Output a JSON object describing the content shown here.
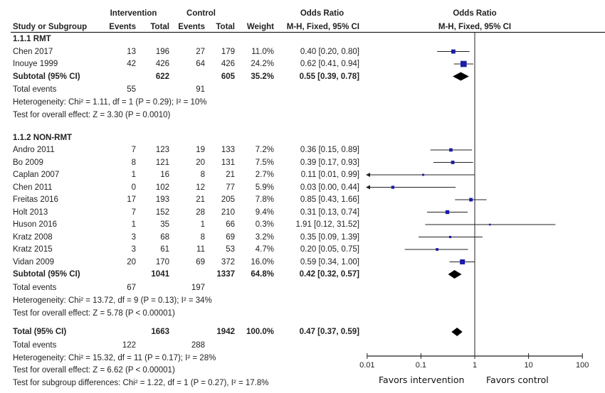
{
  "headers": {
    "intervention": "Intervention",
    "control": "Control",
    "odds_ratio": "Odds Ratio",
    "study": "Study or Subgroup",
    "events": "Events",
    "total": "Total",
    "events2": "Events",
    "total2": "Total",
    "weight": "Weight",
    "method": "M-H, Fixed, 95% CI",
    "plot_title": "Odds Ratio",
    "plot_method": "M-H, Fixed, 95% CI"
  },
  "chart_data": {
    "type": "forest",
    "title": "Odds Ratio",
    "xscale": "log",
    "xlim": [
      0.01,
      100
    ],
    "xticks": [
      "0.01",
      "0.1",
      "1",
      "10",
      "100"
    ],
    "xtick_values": [
      0.01,
      0.1,
      1,
      10,
      100
    ],
    "null_line": 1,
    "left_label": "Favors intervention",
    "right_label": "Favors control",
    "subgroups": [
      {
        "name": "1.1.1 RMT",
        "studies": [
          {
            "name": "Chen 2017",
            "ie": "13",
            "it": "196",
            "ce": "27",
            "ct": "179",
            "weight": "11.0%",
            "w": 11.0,
            "ci_text": "0.40 [0.20, 0.80]",
            "or": 0.4,
            "lo": 0.2,
            "hi": 0.8
          },
          {
            "name": "Inouye 1999",
            "ie": "42",
            "it": "426",
            "ce": "64",
            "ct": "426",
            "weight": "24.2%",
            "w": 24.2,
            "ci_text": "0.62 [0.41, 0.94]",
            "or": 0.62,
            "lo": 0.41,
            "hi": 0.94
          }
        ],
        "subtotal": {
          "label": "Subtotal (95% CI)",
          "it": "622",
          "ct": "605",
          "weight": "35.2%",
          "ci_text": "0.55 [0.39, 0.78]",
          "or": 0.55,
          "lo": 0.39,
          "hi": 0.78
        },
        "events": {
          "label": "Total events",
          "ie": "55",
          "ce": "91"
        },
        "heterogeneity": "Heterogeneity: Chi² = 1.11, df = 1 (P = 0.29); I² = 10%",
        "overall": "Test for overall effect: Z = 3.30 (P = 0.0010)"
      },
      {
        "name": "1.1.2 NON-RMT",
        "studies": [
          {
            "name": "Andro 2011",
            "ie": "7",
            "it": "123",
            "ce": "19",
            "ct": "133",
            "weight": "7.2%",
            "w": 7.2,
            "ci_text": "0.36 [0.15, 0.89]",
            "or": 0.36,
            "lo": 0.15,
            "hi": 0.89
          },
          {
            "name": "Bo 2009",
            "ie": "8",
            "it": "121",
            "ce": "20",
            "ct": "131",
            "weight": "7.5%",
            "w": 7.5,
            "ci_text": "0.39 [0.17, 0.93]",
            "or": 0.39,
            "lo": 0.17,
            "hi": 0.93
          },
          {
            "name": "Caplan 2007",
            "ie": "1",
            "it": "16",
            "ce": "8",
            "ct": "21",
            "weight": "2.7%",
            "w": 2.7,
            "ci_text": "0.11 [0.01, 0.99]",
            "or": 0.11,
            "lo": 0.01,
            "hi": 0.99
          },
          {
            "name": "Chen 2011",
            "ie": "0",
            "it": "102",
            "ce": "12",
            "ct": "77",
            "weight": "5.9%",
            "w": 5.9,
            "ci_text": "0.03 [0.00, 0.44]",
            "or": 0.03,
            "lo": 0.001,
            "hi": 0.44
          },
          {
            "name": "Freitas 2016",
            "ie": "17",
            "it": "193",
            "ce": "21",
            "ct": "205",
            "weight": "7.8%",
            "w": 7.8,
            "ci_text": "0.85 [0.43, 1.66]",
            "or": 0.85,
            "lo": 0.43,
            "hi": 1.66
          },
          {
            "name": "Holt 2013",
            "ie": "7",
            "it": "152",
            "ce": "28",
            "ct": "210",
            "weight": "9.4%",
            "w": 9.4,
            "ci_text": "0.31 [0.13, 0.74]",
            "or": 0.31,
            "lo": 0.13,
            "hi": 0.74
          },
          {
            "name": "Huson 2016",
            "ie": "1",
            "it": "35",
            "ce": "1",
            "ct": "66",
            "weight": "0.3%",
            "w": 0.3,
            "ci_text": "1.91 [0.12, 31.52]",
            "or": 1.91,
            "lo": 0.12,
            "hi": 31.52
          },
          {
            "name": "Kratz 2008",
            "ie": "3",
            "it": "68",
            "ce": "8",
            "ct": "69",
            "weight": "3.2%",
            "w": 3.2,
            "ci_text": "0.35 [0.09, 1.39]",
            "or": 0.35,
            "lo": 0.09,
            "hi": 1.39
          },
          {
            "name": "Kratz 2015",
            "ie": "3",
            "it": "61",
            "ce": "11",
            "ct": "53",
            "weight": "4.7%",
            "w": 4.7,
            "ci_text": "0.20 [0.05, 0.75]",
            "or": 0.2,
            "lo": 0.05,
            "hi": 0.75
          },
          {
            "name": "Vidan 2009",
            "ie": "20",
            "it": "170",
            "ce": "69",
            "ct": "372",
            "weight": "16.0%",
            "w": 16.0,
            "ci_text": "0.59 [0.34, 1.00]",
            "or": 0.59,
            "lo": 0.34,
            "hi": 1.0
          }
        ],
        "subtotal": {
          "label": "Subtotal (95% CI)",
          "it": "1041",
          "ct": "1337",
          "weight": "64.8%",
          "ci_text": "0.42 [0.32, 0.57]",
          "or": 0.42,
          "lo": 0.32,
          "hi": 0.57
        },
        "events": {
          "label": "Total events",
          "ie": "67",
          "ce": "197"
        },
        "heterogeneity": "Heterogeneity: Chi² = 13.72, df = 9 (P = 0.13); I² = 34%",
        "overall": "Test for overall effect: Z = 5.78 (P < 0.00001)"
      }
    ],
    "total": {
      "label": "Total (95% CI)",
      "it": "1663",
      "ct": "1942",
      "weight": "100.0%",
      "ci_text": "0.47 [0.37, 0.59]",
      "or": 0.47,
      "lo": 0.37,
      "hi": 0.59
    },
    "total_events": {
      "label": "Total events",
      "ie": "122",
      "ce": "288"
    },
    "heterogeneity": "Heterogeneity: Chi² = 15.32, df = 11 (P = 0.17); I² = 28%",
    "overall": "Test for overall effect: Z = 6.62 (P < 0.00001)",
    "subgroup_diff": "Test for subgroup differences: Chi² = 1.22, df = 1 (P = 0.27), I² = 17.8%",
    "colors": {
      "square": "#1c1ca8",
      "diamond": "#000000",
      "line": "#222222"
    }
  }
}
